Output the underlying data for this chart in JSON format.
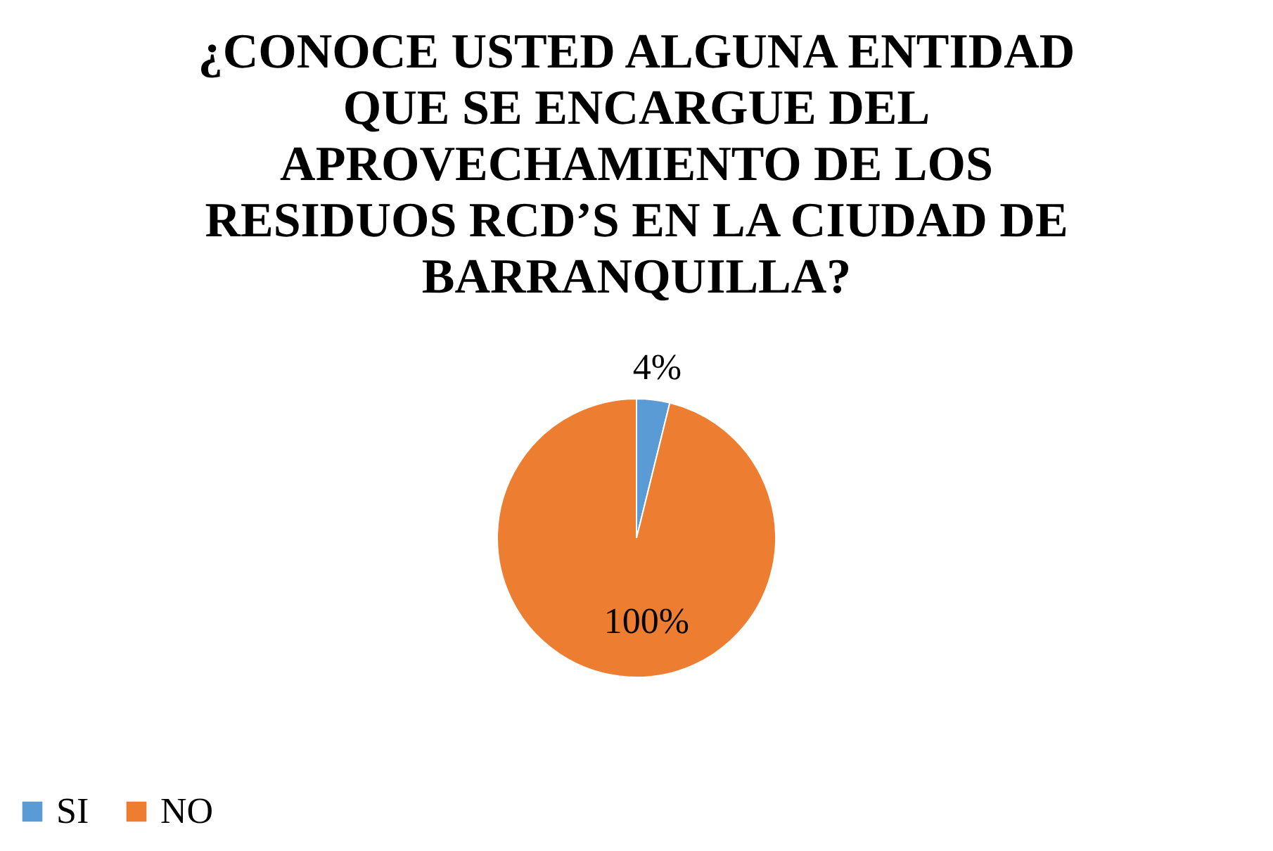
{
  "chart_data": {
    "type": "pie",
    "title": "¿CONOCE USTED ALGUNA ENTIDAD QUE SE ENCARGUE DEL APROVECHAMIENTO DE LOS RESIDUOS RCD’S EN LA CIUDAD DE BARRANQUILLA?",
    "categories": [
      "SI",
      "NO"
    ],
    "values": [
      4,
      100
    ],
    "colors": [
      "#5b9bd5",
      "#ed7d31"
    ],
    "value_labels": [
      "4%",
      "100%"
    ],
    "legend": "bottom"
  }
}
